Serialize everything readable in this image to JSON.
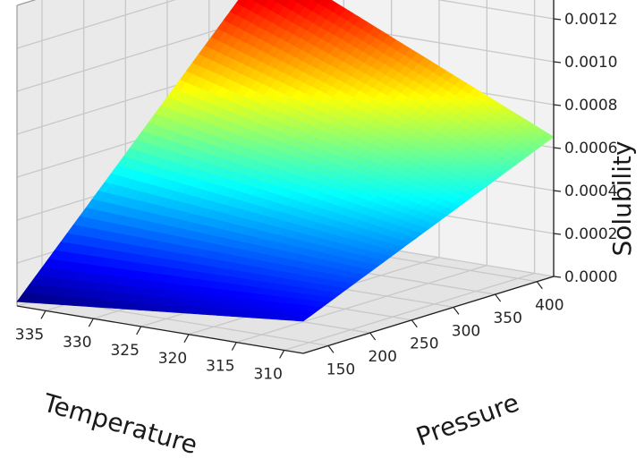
{
  "chart_data": {
    "type": "surface",
    "colormap": "jet",
    "grid": true,
    "xlabel": "Temperature",
    "ylabel": "Pressure",
    "zlabel": "Solubility",
    "x_ticks": [
      "310",
      "315",
      "320",
      "325",
      "330",
      "335"
    ],
    "y_ticks": [
      "150",
      "200",
      "250",
      "300",
      "350",
      "400"
    ],
    "z_ticks": [
      "0.0000",
      "0.0002",
      "0.0004",
      "0.0006",
      "0.0008",
      "0.0010",
      "0.0012"
    ],
    "x_range": [
      308,
      338
    ],
    "y_range": [
      120,
      420
    ],
    "z_range": [
      0,
      0.00125
    ],
    "corner_values": [
      {
        "temperature": 308,
        "pressure": 120,
        "solubility": 0.00015
      },
      {
        "temperature": 338,
        "pressure": 120,
        "solubility": 2e-05
      },
      {
        "temperature": 308,
        "pressure": 420,
        "solubility": 0.00065
      },
      {
        "temperature": 338,
        "pressure": 420,
        "solubility": 0.00125
      }
    ]
  }
}
